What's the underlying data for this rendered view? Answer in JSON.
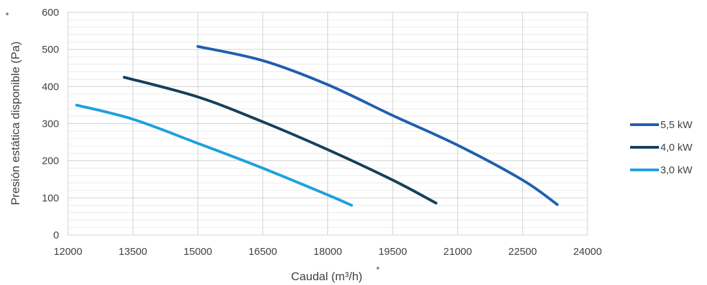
{
  "chart_data": {
    "type": "line",
    "title": "",
    "xlabel": "Caudal (m³/h)",
    "ylabel": "Presión estática disponible (Pa)",
    "asterisk": "*",
    "xlim": [
      12000,
      24000
    ],
    "ylim": [
      0,
      600
    ],
    "x_ticks": [
      12000,
      13500,
      15000,
      16500,
      18000,
      19500,
      21000,
      22500,
      24000
    ],
    "y_ticks": [
      0,
      100,
      200,
      300,
      400,
      500,
      600
    ],
    "grid": true,
    "legend_position": "right",
    "series": [
      {
        "name": "5,5 kW",
        "color": "#1f5fae",
        "points": [
          [
            15000,
            508
          ],
          [
            16500,
            470
          ],
          [
            18000,
            405
          ],
          [
            19500,
            322
          ],
          [
            21000,
            242
          ],
          [
            22500,
            148
          ],
          [
            23300,
            82
          ]
        ]
      },
      {
        "name": "4,0 kW",
        "color": "#163f5c",
        "points": [
          [
            13300,
            425
          ],
          [
            15000,
            372
          ],
          [
            16500,
            305
          ],
          [
            18000,
            230
          ],
          [
            19500,
            148
          ],
          [
            20500,
            86
          ]
        ]
      },
      {
        "name": "3,0 kW",
        "color": "#1da1dc",
        "points": [
          [
            12200,
            350
          ],
          [
            13500,
            312
          ],
          [
            15000,
            247
          ],
          [
            16500,
            180
          ],
          [
            18000,
            108
          ],
          [
            18550,
            80
          ]
        ]
      }
    ]
  }
}
